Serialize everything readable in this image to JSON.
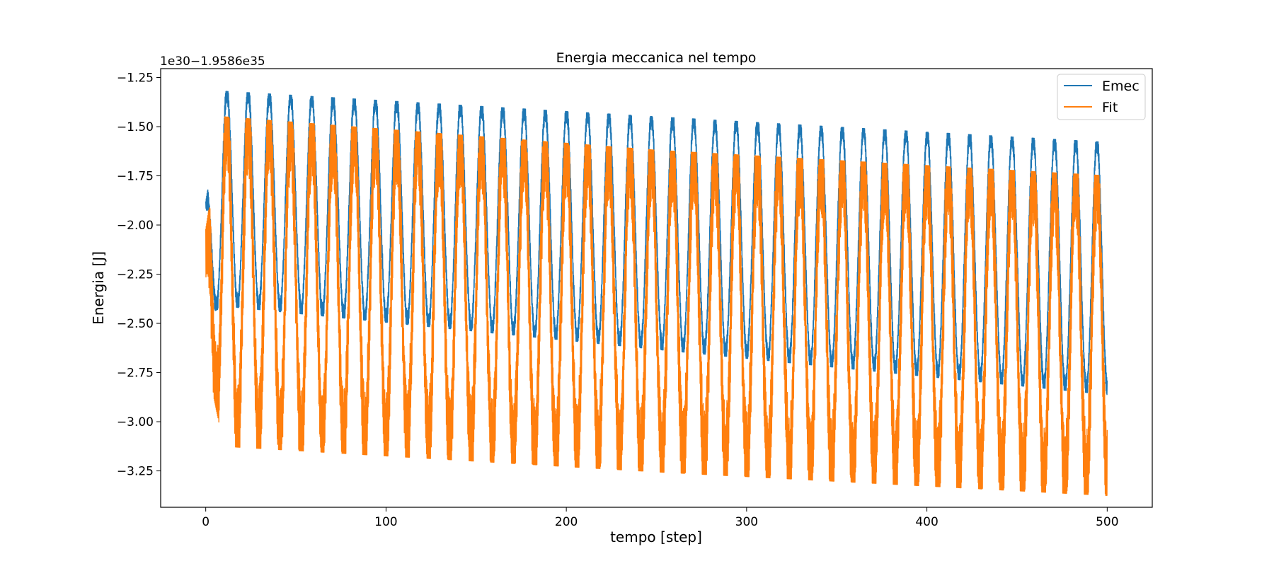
{
  "chart_data": {
    "type": "line",
    "title": "Energia meccanica nel tempo",
    "xlabel": "tempo [step]",
    "ylabel": "Energia [J]",
    "y_offset_text": "1e30−1.9586e35",
    "xlim": [
      -25,
      525
    ],
    "ylim": [
      -3.435,
      -1.205
    ],
    "x_ticks": [
      0,
      100,
      200,
      300,
      400,
      500
    ],
    "x_tick_labels": [
      "0",
      "100",
      "200",
      "300",
      "400",
      "500"
    ],
    "y_ticks": [
      -1.25,
      -1.5,
      -1.75,
      -2.0,
      -2.25,
      -2.5,
      -2.75,
      -3.0,
      -3.25
    ],
    "y_tick_labels": [
      "−1.25",
      "−1.50",
      "−1.75",
      "−2.00",
      "−2.25",
      "−2.50",
      "−2.75",
      "−3.00",
      "−3.25"
    ],
    "grid": false,
    "legend_position": "top-right",
    "series": [
      {
        "name": "Emec",
        "color": "#1f77b4",
        "x_range": [
          0,
          500
        ],
        "period": 11.77,
        "upper_envelope": {
          "x": [
            0,
            10,
            250,
            500
          ],
          "y": [
            -1.88,
            -1.32,
            -1.45,
            -1.58
          ]
        },
        "lower_envelope": {
          "x": [
            0,
            10,
            250,
            500
          ],
          "y": [
            -2.45,
            -2.4,
            -2.62,
            -2.85
          ]
        },
        "fast_band_width": 0.12
      },
      {
        "name": "Fit",
        "color": "#ff7f0e",
        "x_range": [
          0,
          500
        ],
        "period": 11.77,
        "upper_envelope": {
          "x": [
            0,
            10,
            250,
            500
          ],
          "y": [
            -2.02,
            -1.45,
            -1.62,
            -1.75
          ]
        },
        "lower_envelope": {
          "x": [
            0,
            10,
            250,
            500
          ],
          "y": [
            -2.62,
            -3.07,
            -3.2,
            -3.32
          ]
        },
        "fast_band_width": 0.55
      }
    ]
  }
}
